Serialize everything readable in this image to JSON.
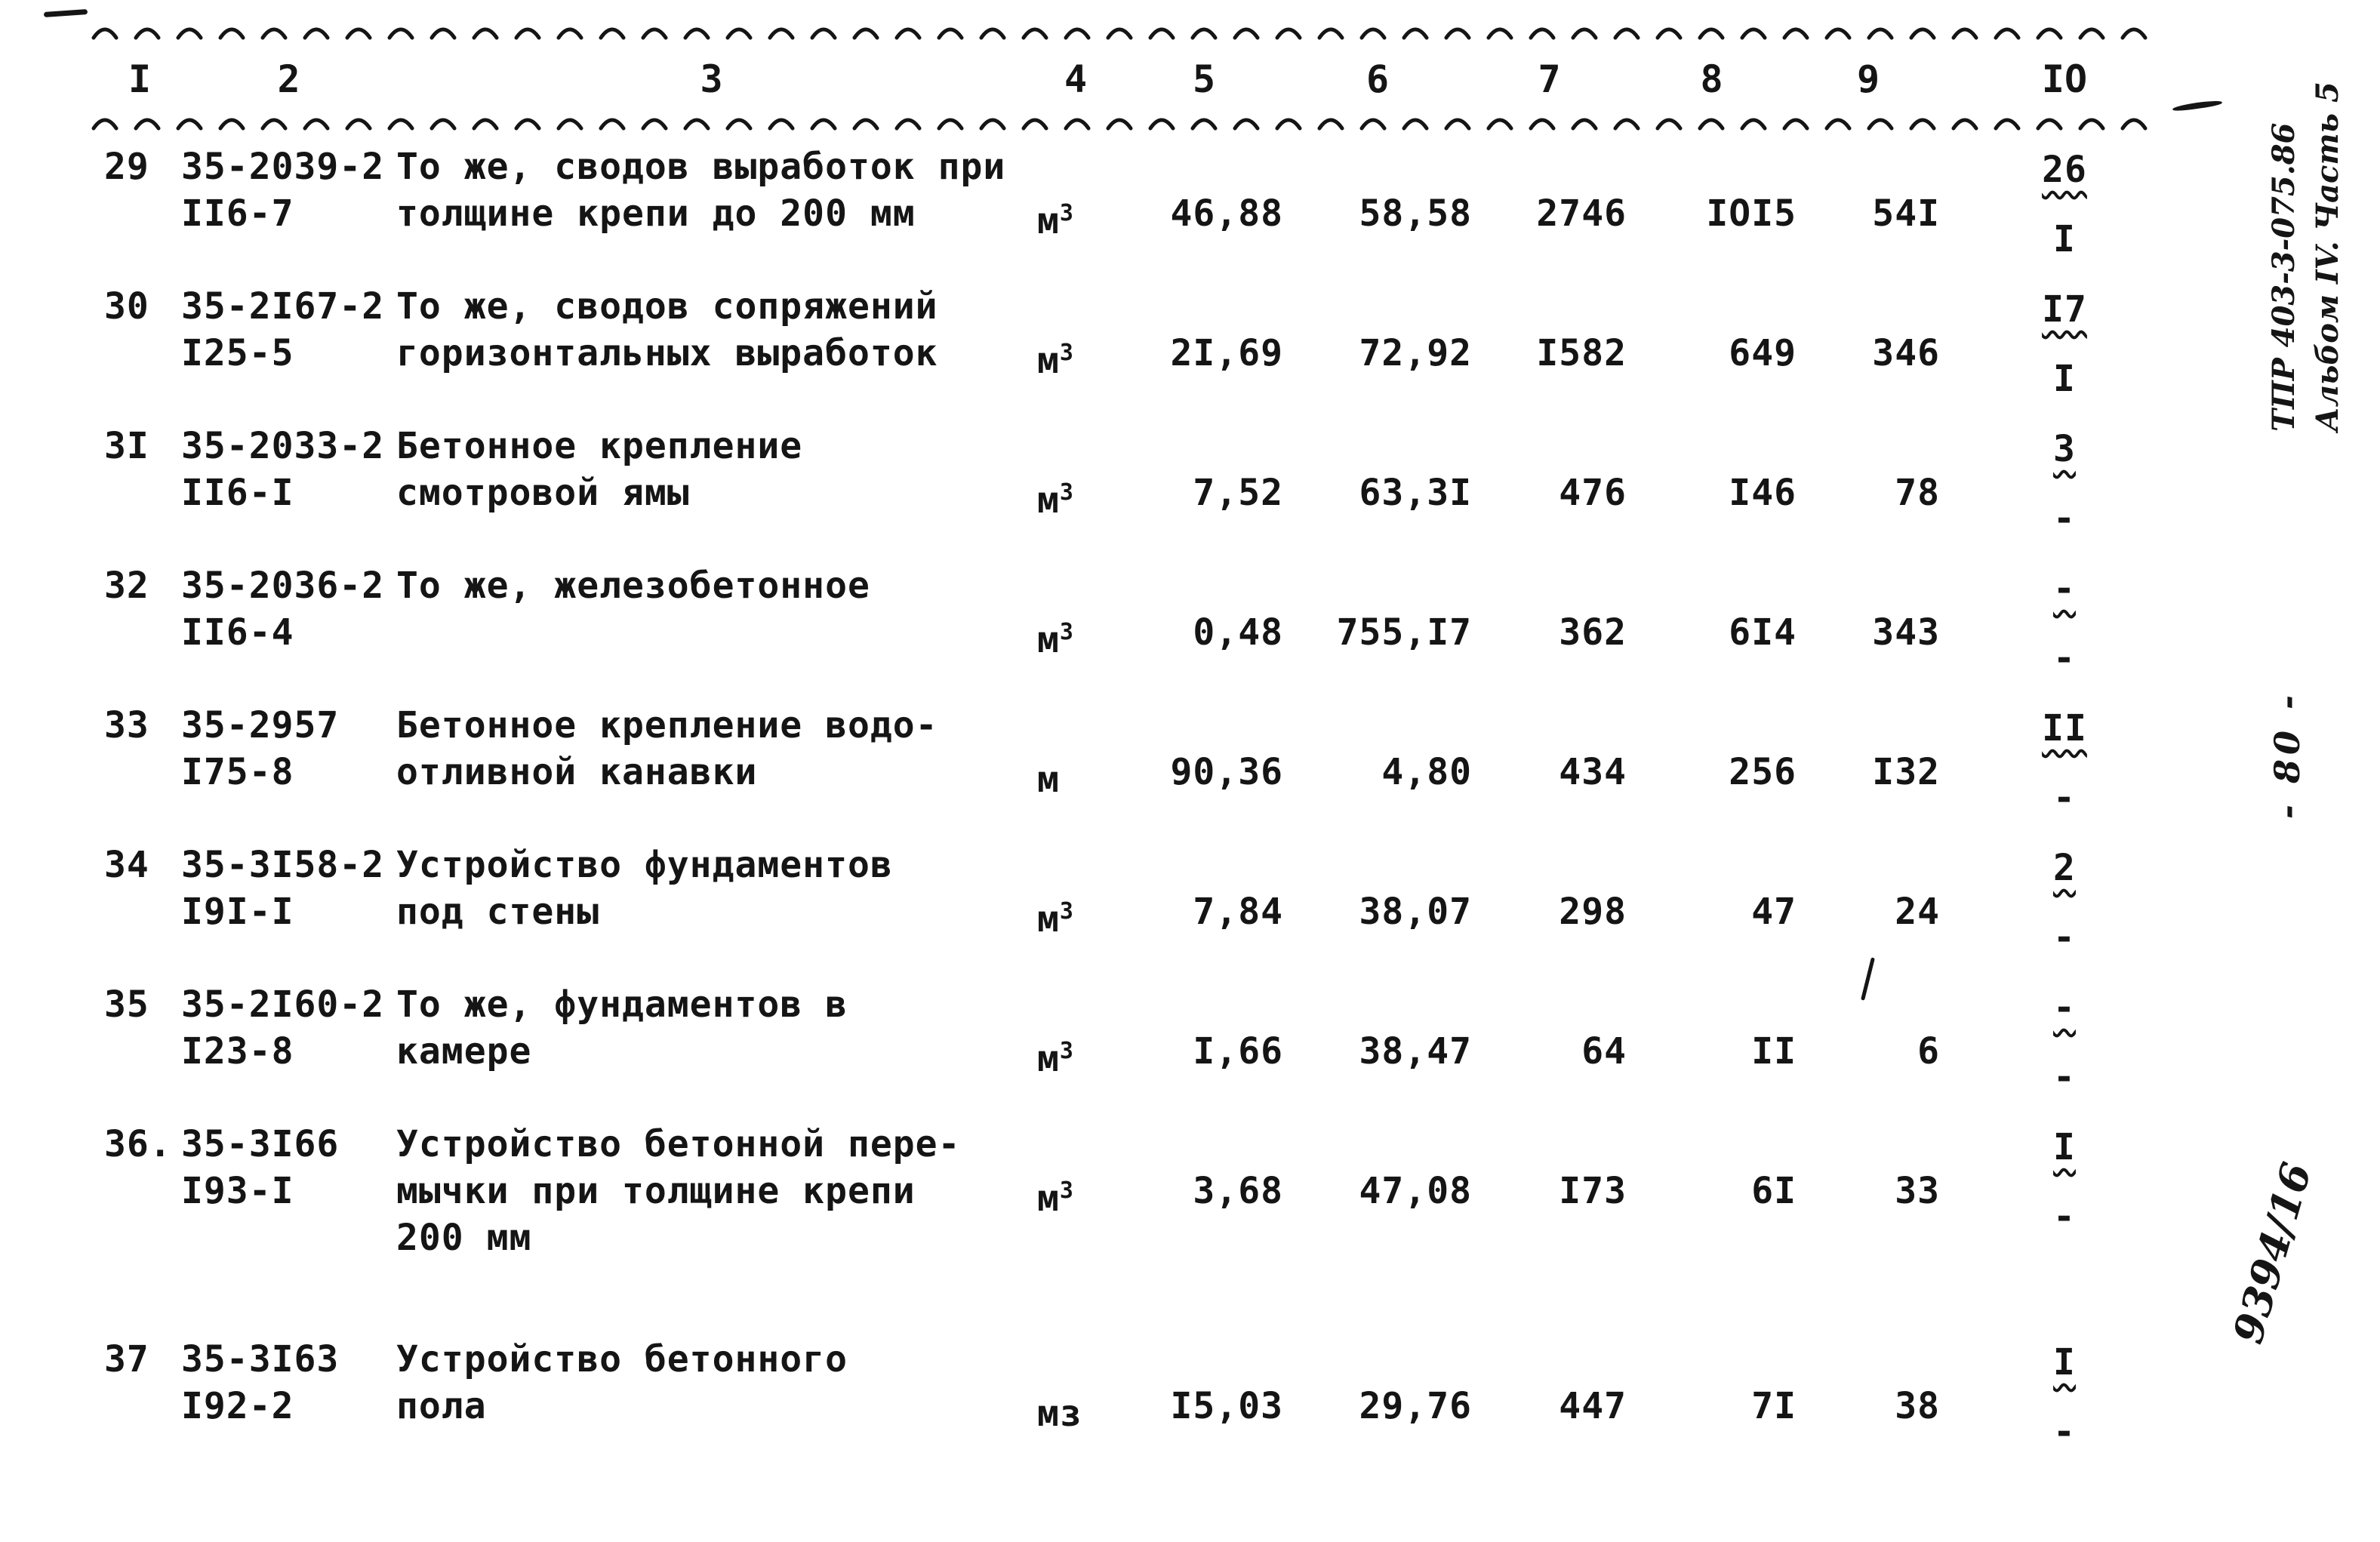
{
  "page": {
    "header_columns": [
      "I",
      "2",
      "3",
      "4",
      "5",
      "6",
      "7",
      "8",
      "9",
      "IO"
    ],
    "rows": [
      {
        "num": "29",
        "code1": "35-2039-2",
        "code2": "II6-7",
        "desc": [
          "То же, сводов выработок при",
          "толщине крепи до 200 мм"
        ],
        "unit": "м",
        "unit_sup": "3",
        "v5": "46,88",
        "v6": "58,58",
        "v7": "2746",
        "v8": "IOI5",
        "v9": "54I",
        "f_top": "26",
        "f_bottom": "I"
      },
      {
        "num": "30",
        "code1": "35-2I67-2",
        "code2": "I25-5",
        "desc": [
          "То же, сводов сопряжений",
          "горизонтальных выработок"
        ],
        "unit": "м",
        "unit_sup": "3",
        "v5": "2I,69",
        "v6": "72,92",
        "v7": "I582",
        "v8": "649",
        "v9": "346",
        "f_top": "I7",
        "f_bottom": "I"
      },
      {
        "num": "3I",
        "code1": "35-2033-2",
        "code2": "II6-I",
        "desc": [
          "Бетонное крепление",
          "смотровой ямы"
        ],
        "unit": "м",
        "unit_sup": "3",
        "v5": "7,52",
        "v6": "63,3I",
        "v7": "476",
        "v8": "I46",
        "v9": "78",
        "f_top": "3",
        "f_bottom": "-"
      },
      {
        "num": "32",
        "code1": "35-2036-2",
        "code2": "II6-4",
        "desc": [
          "То же, железобетонное"
        ],
        "unit": "м",
        "unit_sup": "3",
        "v5": "0,48",
        "v6": "755,I7",
        "v7": "362",
        "v8": "6I4",
        "v9": "343",
        "f_top": "-",
        "f_bottom": "-"
      },
      {
        "num": "33",
        "code1": "35-2957",
        "code2": "I75-8",
        "desc": [
          "Бетонное крепление водо-",
          "отливной канавки"
        ],
        "unit": "м",
        "unit_sup": "",
        "v5": "90,36",
        "v6": "4,80",
        "v7": "434",
        "v8": "256",
        "v9": "I32",
        "f_top": "II",
        "f_bottom": "-"
      },
      {
        "num": "34",
        "code1": "35-3I58-2",
        "code2": "I9I-I",
        "desc": [
          "Устройство фундаментов",
          "под стены"
        ],
        "unit": "м",
        "unit_sup": "3",
        "v5": "7,84",
        "v6": "38,07",
        "v7": "298",
        "v8": "47",
        "v9": "24",
        "f_top": "2",
        "f_bottom": "-"
      },
      {
        "num": "35",
        "code1": "35-2I60-2",
        "code2": "I23-8",
        "desc": [
          "То же, фундаментов в",
          "камере"
        ],
        "unit": "м",
        "unit_sup": "3",
        "v5": "I,66",
        "v6": "38,47",
        "v7": "64",
        "v8": "II",
        "v9": "6",
        "f_top": "-",
        "f_bottom": "-"
      },
      {
        "num": "36.",
        "code1": "35-3I66",
        "code2": "I93-I",
        "desc": [
          "Устройство бетонной пере-",
          "мычки при толщине крепи",
          "200 мм"
        ],
        "unit": "м",
        "unit_sup": "3",
        "v5": "3,68",
        "v6": "47,08",
        "v7": "I73",
        "v8": "6I",
        "v9": "33",
        "f_top": "I",
        "f_bottom": "-"
      },
      {
        "num": "37",
        "code1": "35-3I63",
        "code2": "I92-2",
        "desc": [
          "Устройство бетонного",
          "пола"
        ],
        "unit": "мз",
        "unit_sup": "",
        "v5": "I5,03",
        "v6": "29,76",
        "v7": "447",
        "v8": "7I",
        "v9": "38",
        "f_top": "I",
        "f_bottom": "-"
      }
    ],
    "margin": {
      "stamp_line1": "ТПР 403-3-075.86",
      "stamp_line2": "Альбом IV. Часть 5",
      "page_number": "- 80 -",
      "doc_number": "9394/16"
    }
  }
}
